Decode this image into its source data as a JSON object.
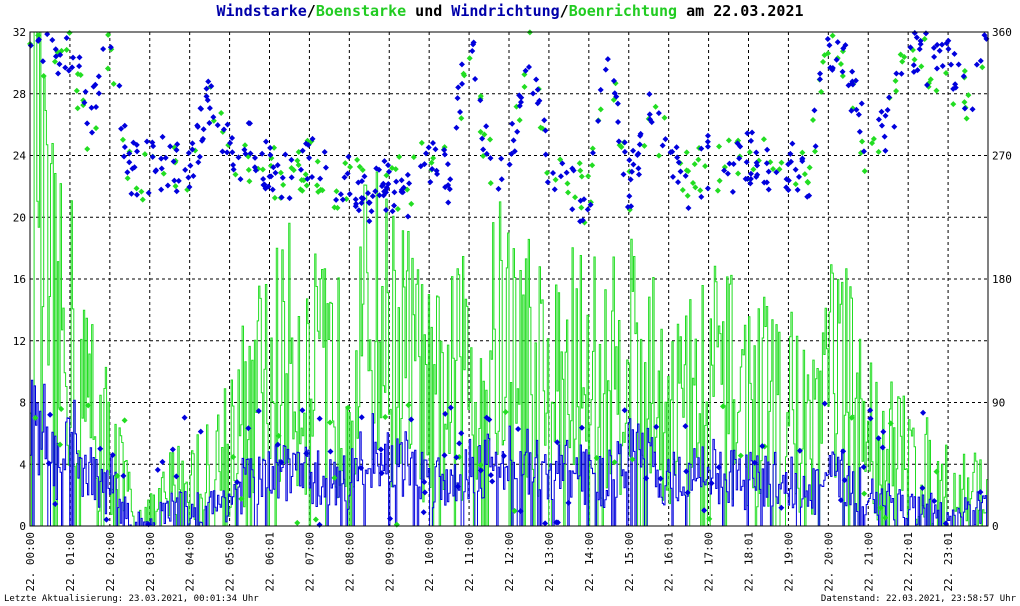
{
  "title": {
    "part1": "Windstarke",
    "sep1": "/",
    "part2": "Boenstarke",
    "part3": " und ",
    "part4": "Windrichtung",
    "sep2": "/",
    "part5": "Boenrichtung",
    "part6": " am 22.03.2021"
  },
  "footer": {
    "left": "Letzte Aktualisierung: 23.03.2021, 00:01:34 Uhr",
    "right": "Datenstand: 22.03.2021, 23:58:57 Uhr"
  },
  "colors": {
    "wind": "#0000dd",
    "gust": "#22dd22",
    "grid": "#000000",
    "title_blue": "#0000aa"
  },
  "chart_data": {
    "type": "line",
    "title": "Windstarke/Boenstarke und Windrichtung/Boenrichtung am 22.03.2021",
    "x_tick_labels": [
      "22. 00:00",
      "22. 01:00",
      "22. 02:00",
      "22. 03:00",
      "22. 04:00",
      "22. 05:00",
      "22. 06:01",
      "22. 07:00",
      "22. 08:00",
      "22. 09:00",
      "22. 10:00",
      "22. 11:00",
      "22. 12:00",
      "22. 13:00",
      "22. 14:00",
      "22. 15:00",
      "22. 16:01",
      "22. 17:00",
      "22. 18:01",
      "22. 19:00",
      "22. 20:00",
      "22. 21:00",
      "22. 22:01",
      "22. 23:01"
    ],
    "xlim_hours": [
      0,
      24
    ],
    "y_left_ticks": [
      "0",
      "4",
      "8",
      "12",
      "16",
      "20",
      "24",
      "28",
      "32"
    ],
    "y_left_range": [
      0,
      32
    ],
    "y_right_ticks": [
      "0",
      "90",
      "180",
      "270",
      "360"
    ],
    "y_right_range": [
      0,
      360
    ],
    "grid": true,
    "series": [
      {
        "name": "Windstarke",
        "axis": "left",
        "hours": [
          0,
          0.2,
          0.4,
          0.6,
          0.8,
          1,
          1.2,
          1.4,
          1.6,
          1.8,
          2,
          2.5,
          3,
          3.5,
          4,
          4.5,
          5,
          5.5,
          6,
          6.5,
          7,
          7.5,
          8,
          8.5,
          9,
          9.5,
          10,
          10.5,
          11,
          11.5,
          12,
          12.5,
          13,
          13.5,
          14,
          14.5,
          15,
          15.5,
          16,
          16.5,
          17,
          17.5,
          18,
          18.5,
          19,
          19.5,
          20,
          20.5,
          21,
          21.5,
          22,
          22.5,
          23,
          23.5,
          24
        ],
        "values": [
          8,
          5,
          7,
          4,
          3,
          6,
          5,
          3,
          4,
          2,
          3,
          0,
          0,
          1,
          1,
          1,
          2,
          3,
          3,
          4,
          3,
          3,
          3,
          5,
          4,
          4,
          3,
          3,
          4,
          4,
          5,
          4,
          3,
          4,
          3,
          3,
          5,
          4,
          3,
          3,
          4,
          3,
          3,
          3,
          3,
          2,
          3,
          3,
          2,
          2,
          1,
          1,
          0,
          1,
          1
        ]
      },
      {
        "name": "Boenstarke",
        "axis": "left",
        "hours": [
          0,
          0.2,
          0.4,
          0.6,
          0.8,
          1,
          1.2,
          1.4,
          1.6,
          1.8,
          2,
          2.5,
          3,
          3.5,
          4,
          4.5,
          5,
          5.5,
          6,
          6.5,
          7,
          7.5,
          8,
          8.5,
          9,
          9.5,
          10,
          10.5,
          11,
          11.5,
          12,
          12.5,
          13,
          13.5,
          14,
          14.5,
          15,
          15.5,
          16,
          16.5,
          17,
          17.5,
          18,
          18.5,
          19,
          19.5,
          20,
          20.5,
          21,
          21.5,
          22,
          22.5,
          23,
          23.5,
          24
        ],
        "values": [
          18,
          29,
          15,
          14,
          12,
          13,
          9,
          8,
          9,
          6,
          5,
          1,
          0,
          2,
          3,
          3,
          6,
          8,
          10,
          11,
          10,
          9,
          9,
          14,
          12,
          11,
          8,
          9,
          10,
          11,
          13,
          11,
          9,
          10,
          11,
          9,
          12,
          9,
          8,
          8,
          10,
          9,
          8,
          8,
          8,
          6,
          11,
          9,
          6,
          5,
          4,
          3,
          2,
          2,
          3
        ]
      },
      {
        "name": "Windrichtung",
        "axis": "right",
        "hours": [
          0,
          0.5,
          1,
          1.5,
          2,
          2.5,
          3,
          3.5,
          4,
          4.5,
          5,
          5.5,
          6,
          6.5,
          7,
          7.5,
          8,
          8.5,
          9,
          9.5,
          10,
          10.5,
          11,
          11.5,
          12,
          12.5,
          13,
          13.5,
          14,
          14.5,
          15,
          15.5,
          16,
          16.5,
          17,
          17.5,
          18,
          18.5,
          19,
          19.5,
          20,
          20.5,
          21,
          21.5,
          22,
          22.5,
          23,
          23.5,
          24
        ],
        "values": [
          355,
          345,
          350,
          300,
          355,
          260,
          262,
          265,
          260,
          310,
          270,
          275,
          260,
          250,
          265,
          250,
          255,
          240,
          250,
          245,
          270,
          255,
          355,
          265,
          260,
          350,
          255,
          250,
          235,
          350,
          245,
          300,
          280,
          250,
          265,
          260,
          270,
          265,
          260,
          255,
          350,
          330,
          270,
          290,
          355,
          340,
          335,
          315,
          350
        ]
      },
      {
        "name": "Boenrichtung",
        "axis": "right",
        "hours": [
          0,
          0.5,
          1,
          1.5,
          2,
          2.5,
          3,
          3.5,
          4,
          4.5,
          5,
          5.5,
          6,
          6.5,
          7,
          7.5,
          8,
          8.5,
          9,
          9.5,
          10,
          10.5,
          11,
          11.5,
          12,
          12.5,
          13,
          13.5,
          14,
          14.5,
          15,
          15.5,
          16,
          16.5,
          17,
          17.5,
          18,
          18.5,
          19,
          19.5,
          20,
          20.5,
          21,
          21.5,
          22,
          22.5,
          23,
          23.5,
          24
        ],
        "values": [
          350,
          345,
          355,
          270,
          350,
          255,
          258,
          260,
          265,
          305,
          272,
          270,
          258,
          252,
          268,
          252,
          250,
          242,
          248,
          250,
          268,
          258,
          350,
          262,
          262,
          345,
          252,
          252,
          238,
          345,
          242,
          298,
          278,
          252,
          262,
          262,
          268,
          262,
          262,
          258,
          345,
          325,
          268,
          288,
          350,
          338,
          332,
          312,
          345
        ]
      }
    ]
  }
}
